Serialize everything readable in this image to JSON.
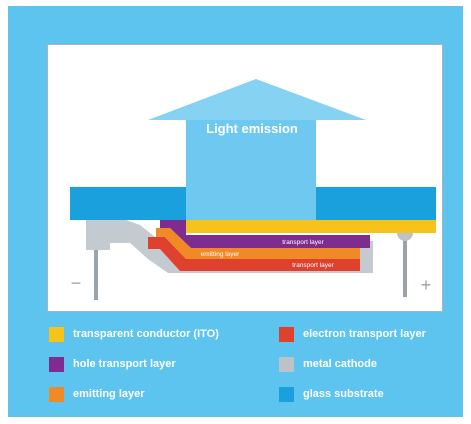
{
  "diagram": {
    "emission_label": "Light emission",
    "minus_label": "−",
    "plus_label": "+",
    "layer_labels": {
      "transport_upper": "transport layer",
      "emitting": "emitting layer",
      "transport_lower": "transport layer"
    }
  },
  "legend": [
    {
      "label": "transparent conductor (ITO)",
      "color": "#f6c31b",
      "name": "legend-transparent-conductor"
    },
    {
      "label": "electron transport layer",
      "color": "#e0412f",
      "name": "legend-electron-transport"
    },
    {
      "label": "hole transport layer",
      "color": "#7e2d8e",
      "name": "legend-hole-transport"
    },
    {
      "label": "metal cathode",
      "color": "#bcc3c8",
      "name": "legend-metal-cathode"
    },
    {
      "label": "emitting layer",
      "color": "#ef8a26",
      "name": "legend-emitting-layer"
    },
    {
      "label": "glass substrate",
      "color": "#1aa0dd",
      "name": "legend-glass-substrate"
    }
  ]
}
